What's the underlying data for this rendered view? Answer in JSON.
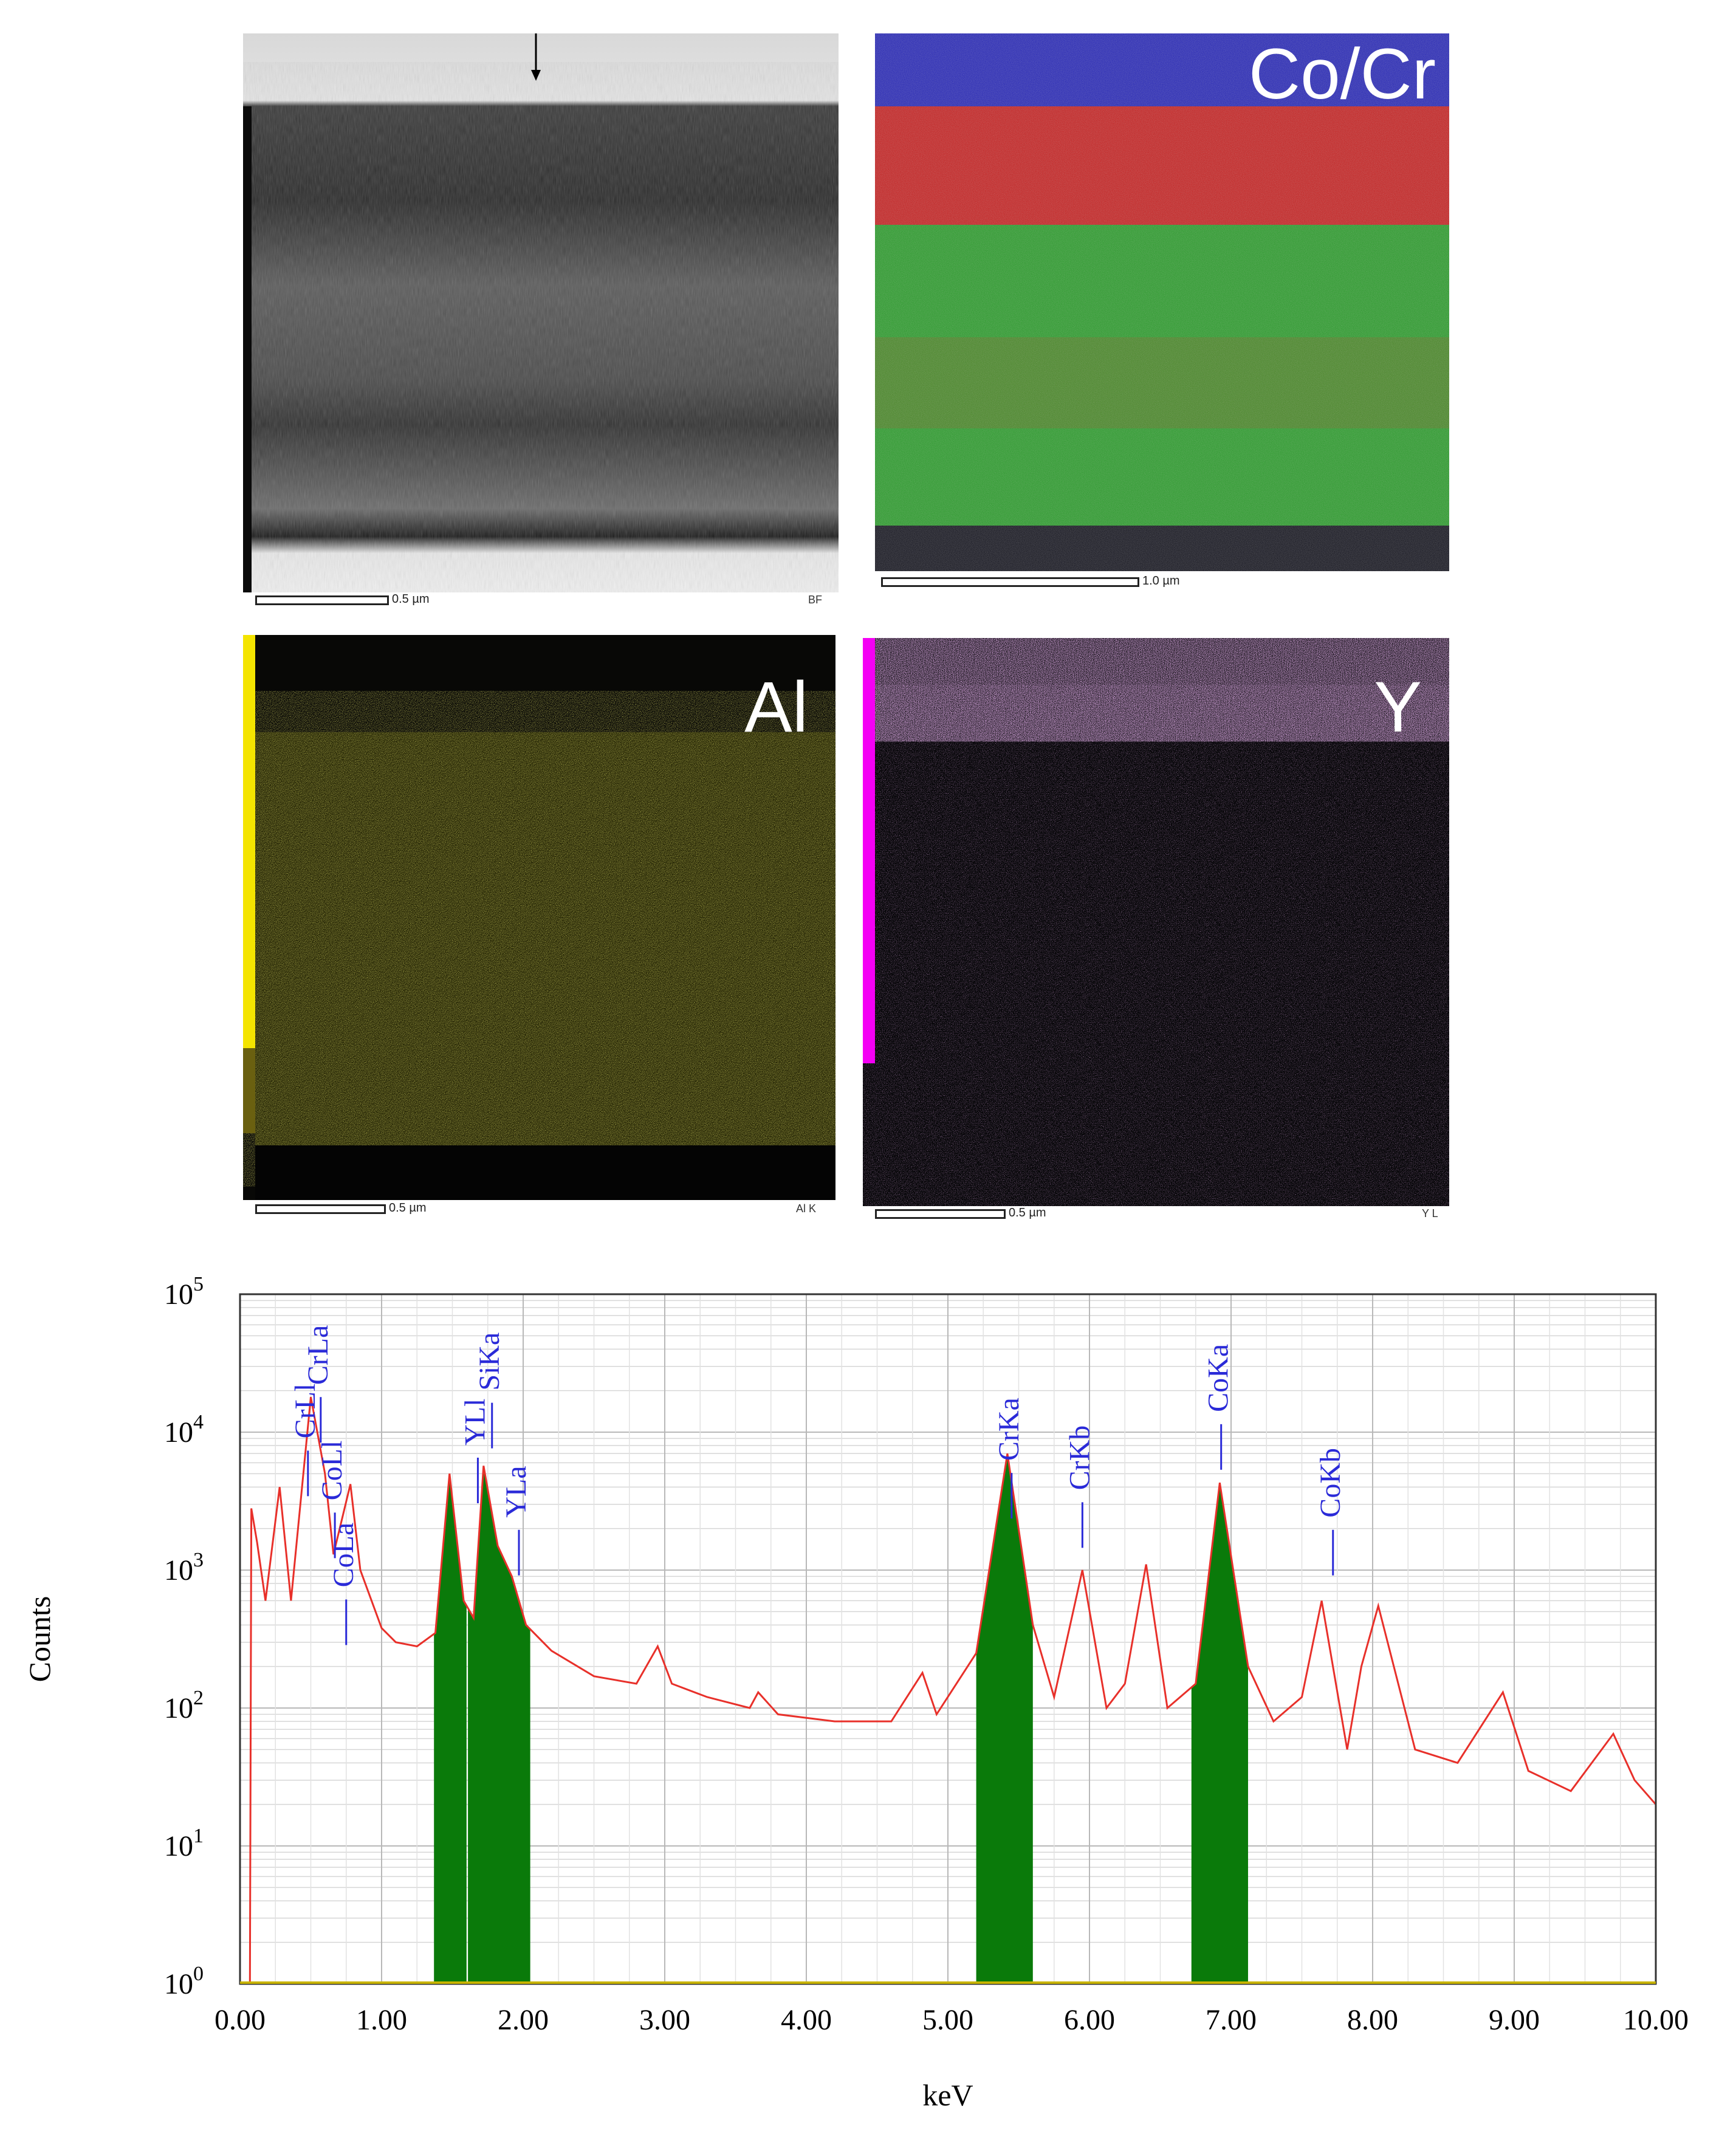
{
  "panels": [
    {
      "id": "bf",
      "label": "",
      "scale_text": "0.5 µm",
      "corner_text": "BF",
      "colors": {
        "background": "#3a3a3a"
      }
    },
    {
      "id": "cocr",
      "label": "Co/Cr",
      "scale_text": "1.0 µm",
      "corner_text": "",
      "colors": {
        "top": "#1010c0",
        "middle": "#d01010",
        "lower": "#1fa01f"
      }
    },
    {
      "id": "al",
      "label": "Al",
      "scale_text": "0.5 µm",
      "corner_text": "Al K",
      "colors": {
        "dots": "#8c8a1a",
        "bar": "#f4e400"
      }
    },
    {
      "id": "y",
      "label": "Y",
      "scale_text": "0.5 µm",
      "corner_text": "Y L",
      "colors": {
        "dots": "#b060c0",
        "bar": "#f400f4"
      }
    }
  ],
  "chart_data": {
    "type": "line",
    "xlabel": "keV",
    "ylabel": "Counts",
    "xlim": [
      0,
      10
    ],
    "ylim": [
      1,
      100000
    ],
    "yscale": "log",
    "grid": true,
    "x_ticks": [
      "0.00",
      "1.00",
      "2.00",
      "3.00",
      "4.00",
      "5.00",
      "6.00",
      "7.00",
      "8.00",
      "9.00",
      "10.00"
    ],
    "y_ticks": [
      {
        "base": "10",
        "exp": "0",
        "value": 1
      },
      {
        "base": "10",
        "exp": "1",
        "value": 10
      },
      {
        "base": "10",
        "exp": "2",
        "value": 100
      },
      {
        "base": "10",
        "exp": "3",
        "value": 1000
      },
      {
        "base": "10",
        "exp": "4",
        "value": 10000
      },
      {
        "base": "10",
        "exp": "5",
        "value": 100000
      }
    ],
    "colors": {
      "spectrum": "#e8302a",
      "peak_fill": "#0a7a0a",
      "baseline": "#c8b400",
      "label": "#2a2ad8"
    },
    "spectrum": [
      [
        0.07,
        1
      ],
      [
        0.08,
        2800
      ],
      [
        0.12,
        1600
      ],
      [
        0.18,
        600
      ],
      [
        0.28,
        4000
      ],
      [
        0.36,
        600
      ],
      [
        0.5,
        18000
      ],
      [
        0.6,
        5000
      ],
      [
        0.66,
        1300
      ],
      [
        0.78,
        4200
      ],
      [
        0.85,
        1000
      ],
      [
        1.0,
        380
      ],
      [
        1.1,
        300
      ],
      [
        1.25,
        280
      ],
      [
        1.38,
        350
      ],
      [
        1.48,
        5000
      ],
      [
        1.58,
        600
      ],
      [
        1.65,
        450
      ],
      [
        1.72,
        5700
      ],
      [
        1.82,
        1500
      ],
      [
        1.92,
        900
      ],
      [
        2.02,
        400
      ],
      [
        2.2,
        260
      ],
      [
        2.5,
        170
      ],
      [
        2.8,
        150
      ],
      [
        2.95,
        280
      ],
      [
        3.05,
        150
      ],
      [
        3.3,
        120
      ],
      [
        3.6,
        100
      ],
      [
        3.66,
        130
      ],
      [
        3.8,
        90
      ],
      [
        4.2,
        80
      ],
      [
        4.6,
        80
      ],
      [
        4.82,
        180
      ],
      [
        4.92,
        90
      ],
      [
        5.2,
        250
      ],
      [
        5.42,
        7000
      ],
      [
        5.6,
        400
      ],
      [
        5.75,
        120
      ],
      [
        5.95,
        1000
      ],
      [
        6.12,
        100
      ],
      [
        6.25,
        150
      ],
      [
        6.4,
        1100
      ],
      [
        6.55,
        100
      ],
      [
        6.75,
        150
      ],
      [
        6.92,
        4300
      ],
      [
        7.12,
        200
      ],
      [
        7.3,
        80
      ],
      [
        7.5,
        120
      ],
      [
        7.64,
        600
      ],
      [
        7.82,
        50
      ],
      [
        7.92,
        200
      ],
      [
        8.04,
        550
      ],
      [
        8.3,
        50
      ],
      [
        8.6,
        40
      ],
      [
        8.92,
        130
      ],
      [
        9.1,
        35
      ],
      [
        9.4,
        25
      ],
      [
        9.7,
        65
      ],
      [
        9.85,
        30
      ],
      [
        10.0,
        20
      ]
    ],
    "filled_peaks": [
      [
        1.37,
        1.6
      ],
      [
        1.61,
        2.05
      ],
      [
        5.2,
        5.6
      ],
      [
        6.72,
        7.12
      ]
    ],
    "annotations": [
      {
        "text": "CrLa",
        "x": 0.57,
        "y": 22000
      },
      {
        "text": "CrLl",
        "x": 0.48,
        "y": 9000
      },
      {
        "text": "CoLl",
        "x": 0.67,
        "y": 3200
      },
      {
        "text": "CoLa",
        "x": 0.75,
        "y": 750
      },
      {
        "text": "YLl",
        "x": 1.68,
        "y": 8000
      },
      {
        "text": "SiKa",
        "x": 1.78,
        "y": 20000
      },
      {
        "text": "YLa",
        "x": 1.97,
        "y": 2400
      },
      {
        "text": "CrKa",
        "x": 5.45,
        "y": 6200
      },
      {
        "text": "CrKb",
        "x": 5.95,
        "y": 3800
      },
      {
        "text": "CoKa",
        "x": 6.93,
        "y": 14000
      },
      {
        "text": "CoKb",
        "x": 7.72,
        "y": 2400
      }
    ]
  }
}
